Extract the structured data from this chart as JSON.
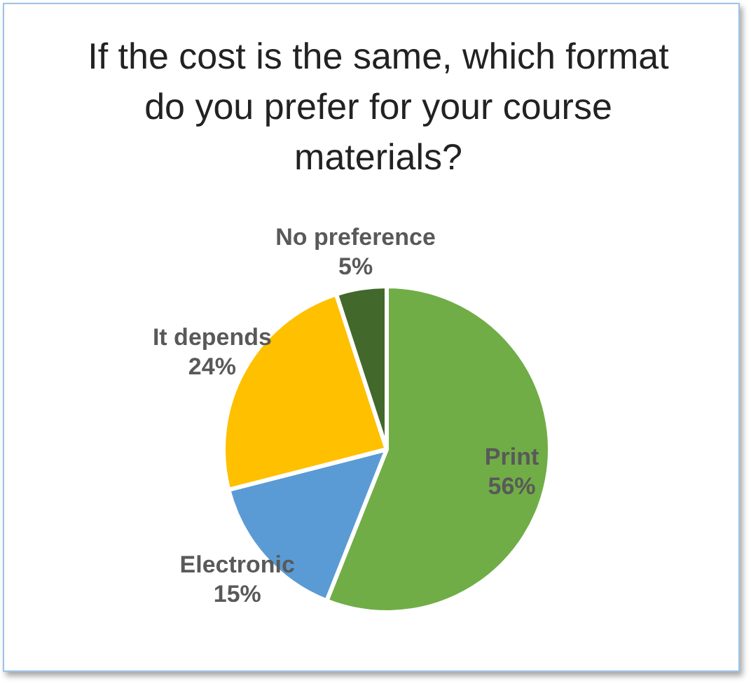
{
  "chart_data": {
    "type": "pie",
    "title": "If the cost is the same, which format do you prefer for your course materials?",
    "categories": [
      "Print",
      "Electronic",
      "It depends",
      "No preference"
    ],
    "values": [
      56,
      15,
      24,
      5
    ],
    "colors": [
      "#70ad47",
      "#5b9bd5",
      "#ffc000",
      "#43682b"
    ],
    "value_labels": [
      "56%",
      "15%",
      "24%",
      "5%"
    ],
    "legend": false
  }
}
